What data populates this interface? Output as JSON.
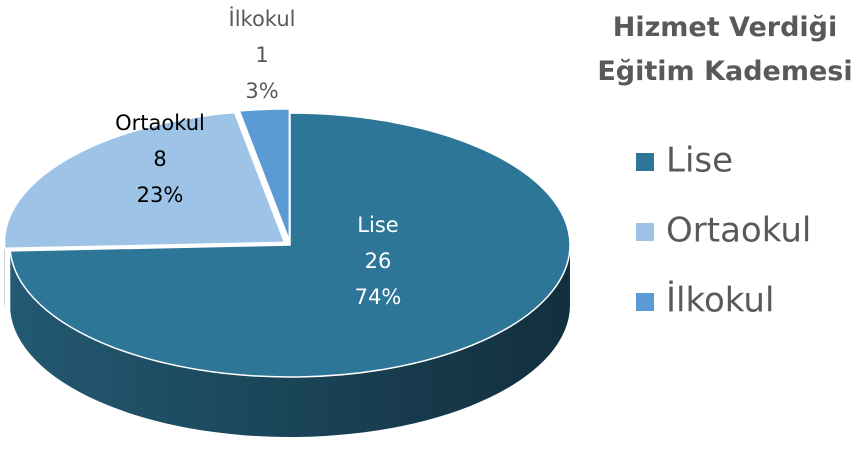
{
  "chart_data": {
    "type": "pie3d",
    "title": "Hizmet Verdiği Eğitim Kademesi",
    "categories": [
      "Lise",
      "Ortaokul",
      "İlkokul"
    ],
    "values": [
      26,
      8,
      1
    ],
    "percentages": [
      74,
      23,
      3
    ],
    "percentage_labels": [
      "74%",
      "23%",
      "3%"
    ],
    "colors": [
      "#2e7698",
      "#9dc3e6",
      "#5b9bd5"
    ],
    "legend": "right"
  }
}
